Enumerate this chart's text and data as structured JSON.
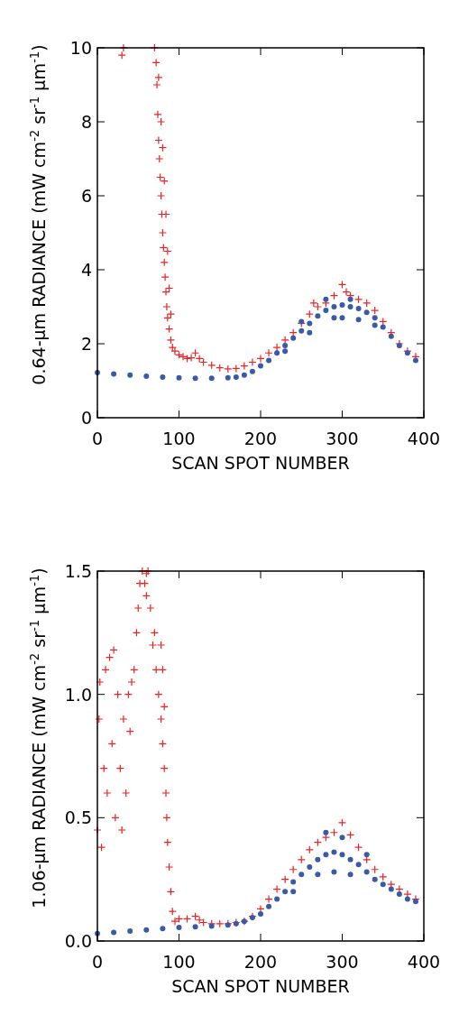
{
  "chart_data": [
    {
      "type": "scatter",
      "xlabel": "SCAN SPOT NUMBER",
      "ylabel": "0.64-μm RADIANCE (mW cm$^{-2}$ sr$^{-1}$ μm$^{-1}$)",
      "xlim": [
        0,
        400
      ],
      "xticks": [
        0,
        100,
        200,
        300,
        400
      ],
      "ylim": [
        0,
        10
      ],
      "yticks": [
        0,
        2,
        4,
        6,
        8,
        10
      ],
      "grid": false,
      "series": [
        {
          "color": "#ee2222",
          "marker": "cross",
          "x": [
            30,
            32,
            70,
            72,
            73,
            74,
            75,
            76,
            77,
            78,
            79,
            80,
            81,
            82,
            83,
            84,
            85,
            86,
            88,
            90,
            92,
            95,
            100,
            105,
            110,
            115,
            120,
            125,
            130,
            140,
            150,
            160,
            170,
            180,
            190,
            200,
            210,
            220,
            230,
            240,
            250,
            260,
            265,
            270,
            280,
            290,
            300,
            305,
            310,
            320,
            330,
            340,
            350,
            360,
            370,
            380,
            390,
            75,
            78,
            80,
            82,
            84,
            86,
            88,
            90
          ],
          "values": [
            9.8,
            10,
            10,
            9.6,
            9,
            8.2,
            7.5,
            7,
            6.5,
            6,
            5.5,
            5,
            4.6,
            4.2,
            3.8,
            3.4,
            3,
            2.7,
            2.4,
            2.1,
            1.9,
            1.8,
            1.7,
            1.65,
            1.6,
            1.62,
            1.75,
            1.6,
            1.5,
            1.42,
            1.35,
            1.32,
            1.33,
            1.4,
            1.5,
            1.6,
            1.75,
            1.9,
            2.1,
            2.3,
            2.55,
            2.8,
            3.1,
            3,
            3.1,
            3.3,
            3.6,
            3.4,
            3.3,
            3.2,
            3.1,
            2.9,
            2.6,
            2.3,
            2,
            1.8,
            1.65,
            9.2,
            8,
            7.3,
            6.4,
            5.5,
            4.5,
            3.5,
            2.8
          ]
        },
        {
          "color": "#3a5aa8",
          "marker": "circle",
          "x": [
            0,
            20,
            40,
            60,
            80,
            100,
            120,
            140,
            160,
            170,
            180,
            190,
            200,
            210,
            220,
            230,
            240,
            250,
            260,
            270,
            280,
            290,
            300,
            310,
            320,
            330,
            340,
            350,
            360,
            370,
            380,
            390,
            260,
            280,
            290,
            300,
            310,
            320,
            340,
            250,
            230
          ],
          "values": [
            1.22,
            1.18,
            1.15,
            1.12,
            1.1,
            1.08,
            1.07,
            1.07,
            1.08,
            1.1,
            1.15,
            1.25,
            1.4,
            1.55,
            1.75,
            1.95,
            2.15,
            2.35,
            2.55,
            2.75,
            2.9,
            3,
            3.05,
            3,
            2.95,
            2.85,
            2.7,
            2.45,
            2.2,
            1.95,
            1.75,
            1.55,
            2.3,
            3.2,
            2.7,
            2.7,
            3.2,
            2.65,
            2.5,
            2.6,
            1.8
          ]
        }
      ]
    },
    {
      "type": "scatter",
      "xlabel": "SCAN SPOT NUMBER",
      "ylabel": "1.06-μm RADIANCE (mW cm$^{-2}$ sr$^{-1}$ μm$^{-1}$)",
      "xlim": [
        0,
        400
      ],
      "xticks": [
        0,
        100,
        200,
        300,
        400
      ],
      "ylim": [
        0,
        1.5
      ],
      "yticks": [
        {
          "value": 0,
          "label": "0.0"
        },
        0.5,
        {
          "value": 1,
          "label": "1.0"
        },
        1.5
      ],
      "grid": false,
      "series": [
        {
          "color": "#ee2222",
          "marker": "cross",
          "x": [
            0,
            2,
            3,
            5,
            8,
            10,
            12,
            15,
            18,
            20,
            22,
            25,
            28,
            30,
            32,
            35,
            38,
            40,
            42,
            45,
            48,
            50,
            52,
            55,
            58,
            60,
            62,
            65,
            68,
            70,
            72,
            75,
            78,
            80,
            82,
            84,
            85,
            86,
            88,
            90,
            92,
            95,
            100,
            110,
            120,
            125,
            130,
            140,
            150,
            160,
            170,
            180,
            190,
            200,
            210,
            220,
            230,
            240,
            250,
            260,
            270,
            280,
            290,
            300,
            310,
            320,
            330,
            340,
            350,
            360,
            370,
            380,
            390,
            60,
            78,
            80,
            82
          ],
          "values": [
            0.45,
            0.9,
            1.05,
            0.38,
            0.7,
            1.1,
            0.6,
            1.15,
            0.8,
            1.18,
            0.5,
            1,
            0.7,
            0.45,
            0.9,
            0.6,
            1,
            0.85,
            1.05,
            1.1,
            1.25,
            1.35,
            1.45,
            1.5,
            1.45,
            1.4,
            1.5,
            1.35,
            1.2,
            1.25,
            1.1,
            1,
            0.9,
            0.8,
            0.7,
            0.6,
            0.5,
            0.4,
            0.3,
            0.2,
            0.12,
            0.08,
            0.09,
            0.09,
            0.1,
            0.085,
            0.075,
            0.07,
            0.07,
            0.07,
            0.075,
            0.08,
            0.1,
            0.13,
            0.17,
            0.21,
            0.25,
            0.29,
            0.33,
            0.37,
            0.4,
            0.42,
            0.44,
            0.48,
            0.43,
            0.38,
            0.33,
            0.29,
            0.26,
            0.23,
            0.21,
            0.19,
            0.17,
            1.49,
            1.2,
            1.1,
            0.95
          ]
        },
        {
          "color": "#3a5aa8",
          "marker": "circle",
          "x": [
            0,
            20,
            40,
            60,
            80,
            100,
            120,
            140,
            160,
            170,
            180,
            190,
            200,
            210,
            220,
            230,
            240,
            250,
            260,
            270,
            280,
            290,
            300,
            310,
            320,
            330,
            340,
            350,
            360,
            370,
            380,
            390,
            270,
            280,
            290,
            300,
            310,
            330,
            240
          ],
          "values": [
            0.03,
            0.035,
            0.04,
            0.045,
            0.05,
            0.055,
            0.058,
            0.06,
            0.065,
            0.07,
            0.08,
            0.095,
            0.11,
            0.14,
            0.17,
            0.2,
            0.24,
            0.27,
            0.3,
            0.33,
            0.35,
            0.36,
            0.35,
            0.33,
            0.31,
            0.28,
            0.25,
            0.23,
            0.21,
            0.19,
            0.17,
            0.16,
            0.27,
            0.44,
            0.28,
            0.42,
            0.27,
            0.35,
            0.2
          ]
        }
      ]
    }
  ]
}
